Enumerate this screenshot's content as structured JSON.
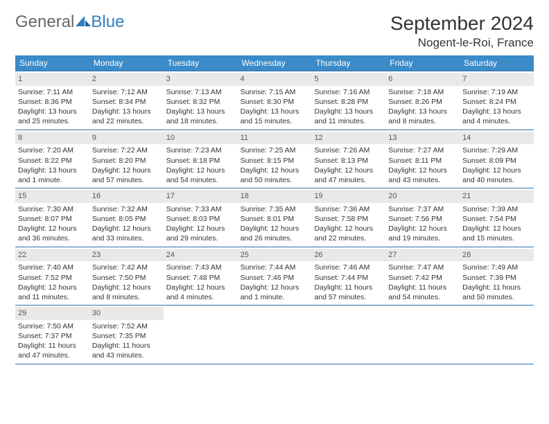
{
  "brand": {
    "word1": "General",
    "word2": "Blue"
  },
  "colors": {
    "header_bg": "#3b8bc9",
    "header_text": "#ffffff",
    "rule": "#2f6fa5",
    "daynum_bg": "#e9e9e9",
    "text": "#333333",
    "brand_gray": "#666666",
    "brand_blue": "#2f7ec2",
    "background": "#ffffff"
  },
  "title": {
    "month_year": "September 2024",
    "location": "Nogent-le-Roi, France"
  },
  "weekdays": [
    "Sunday",
    "Monday",
    "Tuesday",
    "Wednesday",
    "Thursday",
    "Friday",
    "Saturday"
  ],
  "weeks": [
    [
      {
        "n": "1",
        "sr": "Sunrise: 7:11 AM",
        "ss": "Sunset: 8:36 PM",
        "d1": "Daylight: 13 hours",
        "d2": "and 25 minutes."
      },
      {
        "n": "2",
        "sr": "Sunrise: 7:12 AM",
        "ss": "Sunset: 8:34 PM",
        "d1": "Daylight: 13 hours",
        "d2": "and 22 minutes."
      },
      {
        "n": "3",
        "sr": "Sunrise: 7:13 AM",
        "ss": "Sunset: 8:32 PM",
        "d1": "Daylight: 13 hours",
        "d2": "and 18 minutes."
      },
      {
        "n": "4",
        "sr": "Sunrise: 7:15 AM",
        "ss": "Sunset: 8:30 PM",
        "d1": "Daylight: 13 hours",
        "d2": "and 15 minutes."
      },
      {
        "n": "5",
        "sr": "Sunrise: 7:16 AM",
        "ss": "Sunset: 8:28 PM",
        "d1": "Daylight: 13 hours",
        "d2": "and 11 minutes."
      },
      {
        "n": "6",
        "sr": "Sunrise: 7:18 AM",
        "ss": "Sunset: 8:26 PM",
        "d1": "Daylight: 13 hours",
        "d2": "and 8 minutes."
      },
      {
        "n": "7",
        "sr": "Sunrise: 7:19 AM",
        "ss": "Sunset: 8:24 PM",
        "d1": "Daylight: 13 hours",
        "d2": "and 4 minutes."
      }
    ],
    [
      {
        "n": "8",
        "sr": "Sunrise: 7:20 AM",
        "ss": "Sunset: 8:22 PM",
        "d1": "Daylight: 13 hours",
        "d2": "and 1 minute."
      },
      {
        "n": "9",
        "sr": "Sunrise: 7:22 AM",
        "ss": "Sunset: 8:20 PM",
        "d1": "Daylight: 12 hours",
        "d2": "and 57 minutes."
      },
      {
        "n": "10",
        "sr": "Sunrise: 7:23 AM",
        "ss": "Sunset: 8:18 PM",
        "d1": "Daylight: 12 hours",
        "d2": "and 54 minutes."
      },
      {
        "n": "11",
        "sr": "Sunrise: 7:25 AM",
        "ss": "Sunset: 8:15 PM",
        "d1": "Daylight: 12 hours",
        "d2": "and 50 minutes."
      },
      {
        "n": "12",
        "sr": "Sunrise: 7:26 AM",
        "ss": "Sunset: 8:13 PM",
        "d1": "Daylight: 12 hours",
        "d2": "and 47 minutes."
      },
      {
        "n": "13",
        "sr": "Sunrise: 7:27 AM",
        "ss": "Sunset: 8:11 PM",
        "d1": "Daylight: 12 hours",
        "d2": "and 43 minutes."
      },
      {
        "n": "14",
        "sr": "Sunrise: 7:29 AM",
        "ss": "Sunset: 8:09 PM",
        "d1": "Daylight: 12 hours",
        "d2": "and 40 minutes."
      }
    ],
    [
      {
        "n": "15",
        "sr": "Sunrise: 7:30 AM",
        "ss": "Sunset: 8:07 PM",
        "d1": "Daylight: 12 hours",
        "d2": "and 36 minutes."
      },
      {
        "n": "16",
        "sr": "Sunrise: 7:32 AM",
        "ss": "Sunset: 8:05 PM",
        "d1": "Daylight: 12 hours",
        "d2": "and 33 minutes."
      },
      {
        "n": "17",
        "sr": "Sunrise: 7:33 AM",
        "ss": "Sunset: 8:03 PM",
        "d1": "Daylight: 12 hours",
        "d2": "and 29 minutes."
      },
      {
        "n": "18",
        "sr": "Sunrise: 7:35 AM",
        "ss": "Sunset: 8:01 PM",
        "d1": "Daylight: 12 hours",
        "d2": "and 26 minutes."
      },
      {
        "n": "19",
        "sr": "Sunrise: 7:36 AM",
        "ss": "Sunset: 7:58 PM",
        "d1": "Daylight: 12 hours",
        "d2": "and 22 minutes."
      },
      {
        "n": "20",
        "sr": "Sunrise: 7:37 AM",
        "ss": "Sunset: 7:56 PM",
        "d1": "Daylight: 12 hours",
        "d2": "and 19 minutes."
      },
      {
        "n": "21",
        "sr": "Sunrise: 7:39 AM",
        "ss": "Sunset: 7:54 PM",
        "d1": "Daylight: 12 hours",
        "d2": "and 15 minutes."
      }
    ],
    [
      {
        "n": "22",
        "sr": "Sunrise: 7:40 AM",
        "ss": "Sunset: 7:52 PM",
        "d1": "Daylight: 12 hours",
        "d2": "and 11 minutes."
      },
      {
        "n": "23",
        "sr": "Sunrise: 7:42 AM",
        "ss": "Sunset: 7:50 PM",
        "d1": "Daylight: 12 hours",
        "d2": "and 8 minutes."
      },
      {
        "n": "24",
        "sr": "Sunrise: 7:43 AM",
        "ss": "Sunset: 7:48 PM",
        "d1": "Daylight: 12 hours",
        "d2": "and 4 minutes."
      },
      {
        "n": "25",
        "sr": "Sunrise: 7:44 AM",
        "ss": "Sunset: 7:46 PM",
        "d1": "Daylight: 12 hours",
        "d2": "and 1 minute."
      },
      {
        "n": "26",
        "sr": "Sunrise: 7:46 AM",
        "ss": "Sunset: 7:44 PM",
        "d1": "Daylight: 11 hours",
        "d2": "and 57 minutes."
      },
      {
        "n": "27",
        "sr": "Sunrise: 7:47 AM",
        "ss": "Sunset: 7:42 PM",
        "d1": "Daylight: 11 hours",
        "d2": "and 54 minutes."
      },
      {
        "n": "28",
        "sr": "Sunrise: 7:49 AM",
        "ss": "Sunset: 7:39 PM",
        "d1": "Daylight: 11 hours",
        "d2": "and 50 minutes."
      }
    ],
    [
      {
        "n": "29",
        "sr": "Sunrise: 7:50 AM",
        "ss": "Sunset: 7:37 PM",
        "d1": "Daylight: 11 hours",
        "d2": "and 47 minutes."
      },
      {
        "n": "30",
        "sr": "Sunrise: 7:52 AM",
        "ss": "Sunset: 7:35 PM",
        "d1": "Daylight: 11 hours",
        "d2": "and 43 minutes."
      },
      null,
      null,
      null,
      null,
      null
    ]
  ]
}
